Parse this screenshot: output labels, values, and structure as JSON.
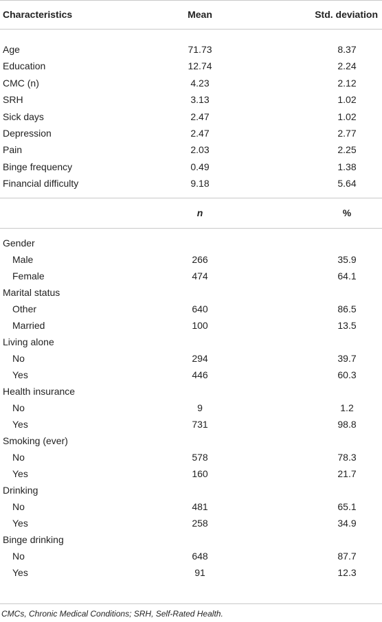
{
  "table": {
    "header": [
      "Characteristics",
      "Mean",
      "Std. deviation"
    ],
    "rows": [
      [
        "Age",
        "71.73",
        "8.37"
      ],
      [
        "Education",
        "12.74",
        "2.24"
      ],
      [
        "CMC (n)",
        "4.23",
        "2.12"
      ],
      [
        "SRH",
        "3.13",
        "1.02"
      ],
      [
        "Sick days",
        "2.47",
        "1.02"
      ],
      [
        "Depression",
        "2.47",
        "2.77"
      ],
      [
        "Pain",
        "2.03",
        "2.25"
      ],
      [
        "Binge frequency",
        "0.49",
        "1.38"
      ],
      [
        "Financial difficulty",
        "9.18",
        "5.64"
      ]
    ],
    "subheader": [
      "n",
      "%"
    ],
    "groups": [
      {
        "label": "Gender",
        "rows": [
          [
            "Male",
            "266",
            "35.9"
          ],
          [
            "Female",
            "474",
            "64.1"
          ]
        ]
      },
      {
        "label": "Marital status",
        "rows": [
          [
            "Other",
            "640",
            "86.5"
          ],
          [
            "Married",
            "100",
            "13.5"
          ]
        ]
      },
      {
        "label": "Living alone",
        "rows": [
          [
            "No",
            "294",
            "39.7"
          ],
          [
            "Yes",
            "446",
            "60.3"
          ]
        ]
      },
      {
        "label": "Health insurance",
        "rows": [
          [
            "No",
            "9",
            "1.2"
          ],
          [
            "Yes",
            "731",
            "98.8"
          ]
        ]
      },
      {
        "label": "Smoking (ever)",
        "rows": [
          [
            "No",
            "578",
            "78.3"
          ],
          [
            "Yes",
            "160",
            "21.7"
          ]
        ]
      },
      {
        "label": "Drinking",
        "rows": [
          [
            "No",
            "481",
            "65.1"
          ],
          [
            "Yes",
            "258",
            "34.9"
          ]
        ]
      },
      {
        "label": "Binge drinking",
        "rows": [
          [
            "No",
            "648",
            "87.7"
          ],
          [
            "Yes",
            "91",
            "12.3"
          ]
        ]
      }
    ]
  },
  "footnote": "CMCs, Chronic Medical Conditions; SRH, Self-Rated Health."
}
